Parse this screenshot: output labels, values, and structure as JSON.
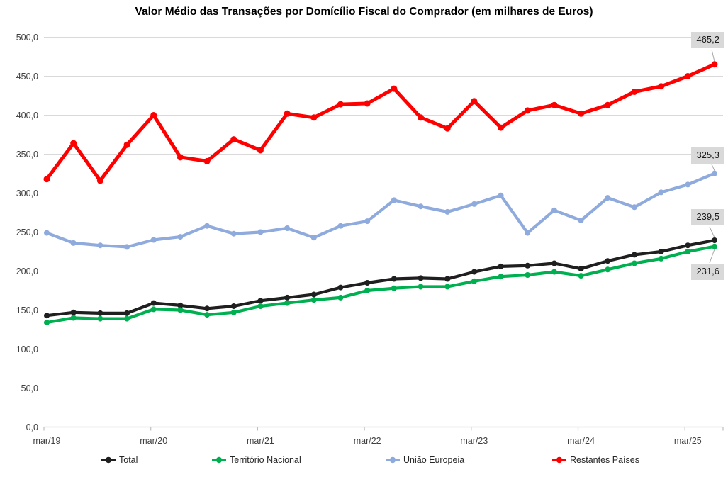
{
  "title": "Valor Médio das Transações por Domícílio Fiscal do Comprador (em milhares de Euros)",
  "chart_data": {
    "type": "line",
    "categories": [
      "mar/19",
      "jun/19",
      "set/19",
      "dez/19",
      "mar/20",
      "jun/20",
      "set/20",
      "dez/20",
      "mar/21",
      "jun/21",
      "set/21",
      "dez/21",
      "mar/22",
      "jun/22",
      "set/22",
      "dez/22",
      "mar/23",
      "jun/23",
      "set/23",
      "dez/23",
      "mar/24",
      "jun/24",
      "set/24",
      "dez/24",
      "mar/25",
      "jun/25"
    ],
    "x_axis_visible_labels": [
      "mar/19",
      "mar/20",
      "mar/21",
      "mar/22",
      "mar/23",
      "mar/24",
      "mar/25"
    ],
    "y_ticks": [
      "0,0",
      "50,0",
      "100,0",
      "150,0",
      "200,0",
      "250,0",
      "300,0",
      "350,0",
      "400,0",
      "450,0",
      "500,0"
    ],
    "ylim": [
      0,
      500
    ],
    "grid": true,
    "legend_position": "bottom",
    "series": [
      {
        "name": "Total",
        "color": "#1f1f1f",
        "end_label": "239,5",
        "values": [
          143,
          147,
          146,
          146,
          159,
          156,
          152,
          155,
          162,
          166,
          170,
          179,
          185,
          190,
          191,
          190,
          199,
          206,
          207,
          210,
          203,
          213,
          221,
          225,
          233,
          239.5
        ]
      },
      {
        "name": "Território Nacional",
        "color": "#00b050",
        "end_label": "231,6",
        "values": [
          134,
          140,
          139,
          139,
          151,
          150,
          144,
          147,
          155,
          159,
          163,
          166,
          175,
          178,
          180,
          180,
          187,
          193,
          195,
          199,
          194,
          202,
          210,
          216,
          225,
          231.6
        ]
      },
      {
        "name": "União Europeia",
        "color": "#8faadc",
        "end_label": "325,3",
        "values": [
          249,
          236,
          233,
          231,
          240,
          244,
          258,
          248,
          250,
          255,
          243,
          258,
          264,
          291,
          283,
          276,
          286,
          297,
          249,
          278,
          265,
          294,
          282,
          301,
          311,
          325.3
        ]
      },
      {
        "name": "Restantes Países",
        "color": "#ff0000",
        "end_label": "465,2",
        "values": [
          318,
          364,
          316,
          362,
          400,
          346,
          341,
          369,
          355,
          402,
          397,
          414,
          415,
          434,
          397,
          383,
          418,
          384,
          406,
          413,
          402,
          413,
          430,
          437,
          450,
          465.2
        ]
      }
    ],
    "style": {
      "gridline_color": "#d9d9d9",
      "axis_line_color": "#bfbfbf",
      "tick_text_color": "#404040",
      "label_box_bg": "#d9d9d9"
    }
  }
}
